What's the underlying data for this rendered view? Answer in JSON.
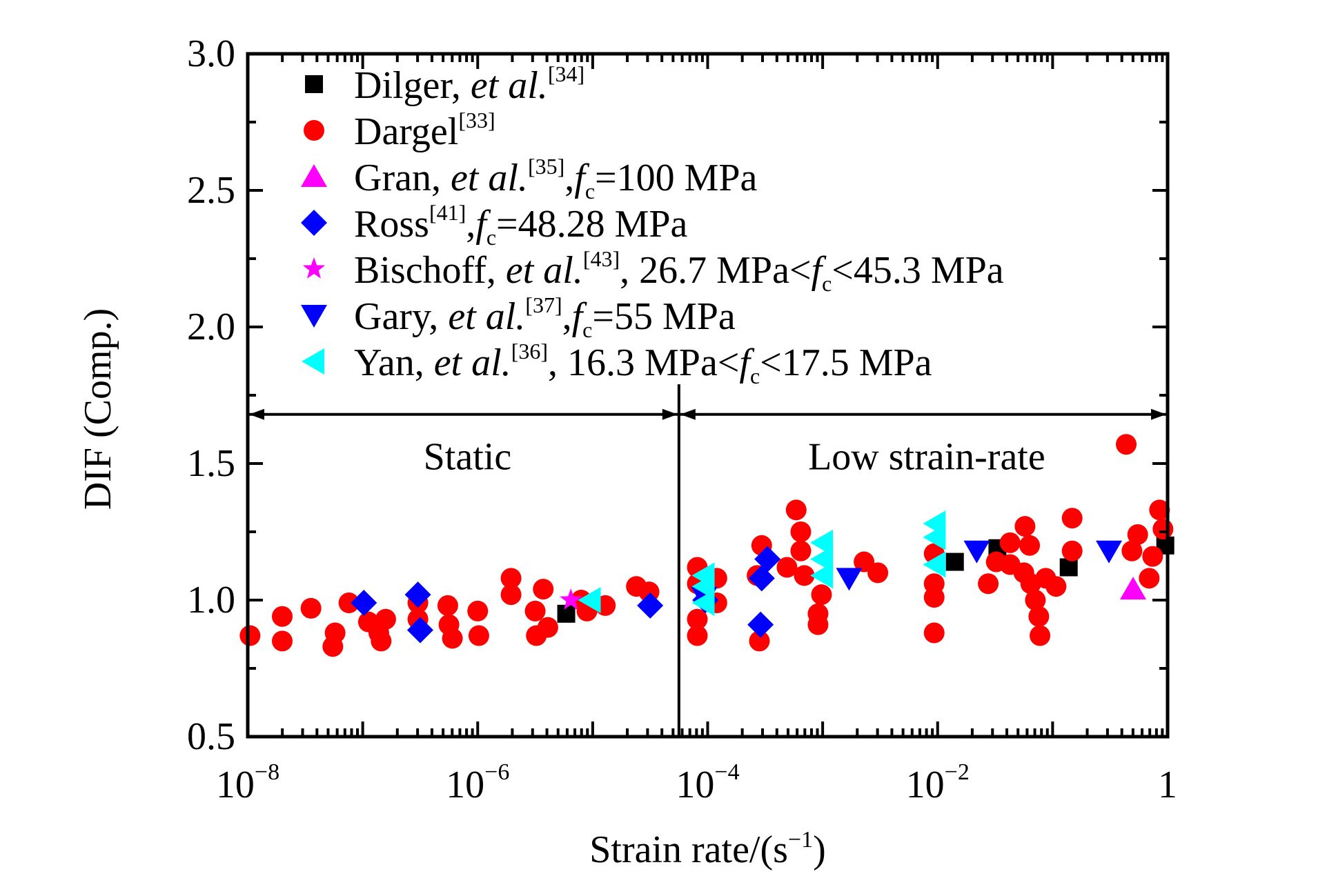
{
  "chart_data": {
    "type": "scatter",
    "title": "",
    "xlabel": "Strain rate/(s",
    "xlabel_sup": "−1",
    "xlabel_end": ")",
    "ylabel": "DIF (Comp.)",
    "xscale": "log",
    "xlim_log10": [
      -8,
      0
    ],
    "ylim": [
      0.5,
      3.0
    ],
    "grid": false,
    "legend_position": "top-left",
    "x_ticks": [
      {
        "base": "10",
        "exp": "−8",
        "log10": -8
      },
      {
        "base": "10",
        "exp": "−6",
        "log10": -6
      },
      {
        "base": "10",
        "exp": "−4",
        "log10": -4
      },
      {
        "base": "10",
        "exp": "−2",
        "log10": -2
      },
      {
        "base": "1",
        "exp": "",
        "log10": 0
      }
    ],
    "y_ticks": [
      "0.5",
      "1.0",
      "1.5",
      "2.0",
      "2.5",
      "3.0"
    ],
    "y_tick_values": [
      0.5,
      1.0,
      1.5,
      2.0,
      2.5,
      3.0
    ],
    "annotations": {
      "divider_log10": -4.25,
      "divider_top_dif": 1.79,
      "arrow_dif": 1.68,
      "static_label": "Static",
      "low_label": "Low strain-rate"
    },
    "series": [
      {
        "name": "Dilger, et al.[34]",
        "legend": {
          "pre": "Dilger, ",
          "ital": "et al.",
          "sup": "[34]",
          "post": ""
        },
        "marker": "square",
        "color": "#000000",
        "points": [
          [
            -5.23,
            0.95
          ],
          [
            -1.85,
            1.14
          ],
          [
            -1.48,
            1.19
          ],
          [
            -0.86,
            1.12
          ],
          [
            -0.02,
            1.2
          ]
        ]
      },
      {
        "name": "Dargel[33]",
        "legend": {
          "pre": "Dargel",
          "ital": "",
          "sup": "[33]",
          "post": ""
        },
        "marker": "circle",
        "color": "#ff0000",
        "points": [
          [
            -7.98,
            0.87
          ],
          [
            -7.7,
            0.94
          ],
          [
            -7.7,
            0.85
          ],
          [
            -7.45,
            0.97
          ],
          [
            -7.24,
            0.88
          ],
          [
            -7.26,
            0.83
          ],
          [
            -7.12,
            0.99
          ],
          [
            -6.95,
            0.92
          ],
          [
            -6.86,
            0.88
          ],
          [
            -6.84,
            0.85
          ],
          [
            -6.8,
            0.93
          ],
          [
            -6.52,
            0.99
          ],
          [
            -6.52,
            0.93
          ],
          [
            -6.26,
            0.98
          ],
          [
            -6.25,
            0.91
          ],
          [
            -6.22,
            0.86
          ],
          [
            -6.0,
            0.96
          ],
          [
            -5.99,
            0.87
          ],
          [
            -5.71,
            1.08
          ],
          [
            -5.71,
            1.02
          ],
          [
            -5.43,
            1.04
          ],
          [
            -5.5,
            0.96
          ],
          [
            -5.49,
            0.87
          ],
          [
            -5.39,
            0.9
          ],
          [
            -5.1,
            1.0
          ],
          [
            -5.05,
            0.96
          ],
          [
            -4.89,
            0.98
          ],
          [
            -4.62,
            1.05
          ],
          [
            -4.51,
            1.03
          ],
          [
            -4.09,
            1.12
          ],
          [
            -4.09,
            1.06
          ],
          [
            -4.09,
            0.93
          ],
          [
            -4.09,
            0.87
          ],
          [
            -3.92,
            1.08
          ],
          [
            -3.92,
            0.99
          ],
          [
            -3.53,
            1.2
          ],
          [
            -3.57,
            1.09
          ],
          [
            -3.55,
            0.85
          ],
          [
            -3.23,
            1.33
          ],
          [
            -3.19,
            1.25
          ],
          [
            -3.19,
            1.18
          ],
          [
            -3.31,
            1.12
          ],
          [
            -3.16,
            1.09
          ],
          [
            -3.01,
            1.02
          ],
          [
            -3.04,
            0.95
          ],
          [
            -3.04,
            0.91
          ],
          [
            -2.64,
            1.14
          ],
          [
            -2.52,
            1.1
          ],
          [
            -2.03,
            1.17
          ],
          [
            -2.03,
            1.06
          ],
          [
            -2.03,
            1.01
          ],
          [
            -2.03,
            0.88
          ],
          [
            -1.56,
            1.06
          ],
          [
            -1.49,
            1.14
          ],
          [
            -1.37,
            1.21
          ],
          [
            -1.24,
            1.27
          ],
          [
            -1.2,
            1.2
          ],
          [
            -1.37,
            1.13
          ],
          [
            -1.25,
            1.1
          ],
          [
            -1.19,
            1.06
          ],
          [
            -1.06,
            1.08
          ],
          [
            -0.97,
            1.05
          ],
          [
            -1.15,
            1.0
          ],
          [
            -1.12,
            0.94
          ],
          [
            -1.11,
            0.87
          ],
          [
            -0.83,
            1.3
          ],
          [
            -0.83,
            1.18
          ],
          [
            -0.36,
            1.57
          ],
          [
            -0.31,
            1.18
          ],
          [
            -0.26,
            1.24
          ],
          [
            -0.07,
            1.33
          ],
          [
            -0.04,
            1.26
          ],
          [
            -0.13,
            1.16
          ],
          [
            -0.16,
            1.08
          ]
        ]
      },
      {
        "name": "Gran, et al.[35], fc=100 MPa",
        "legend": {
          "pre": "Gran, ",
          "ital": "et al.",
          "sup": "[35]",
          "post": ",",
          "f": "f",
          "sub": "c",
          "tail": "=100 MPa"
        },
        "marker": "triangle-up",
        "color": "#ff00ff",
        "points": [
          [
            -0.3,
            1.04
          ]
        ]
      },
      {
        "name": "Ross[41], fc=48.28 MPa",
        "legend": {
          "pre": "Ross",
          "ital": "",
          "sup": "[41]",
          "post": ",",
          "f": "f",
          "sub": "c",
          "tail": "=48.28 MPa"
        },
        "marker": "diamond",
        "color": "#0000ff",
        "points": [
          [
            -6.99,
            0.99
          ],
          [
            -6.52,
            1.02
          ],
          [
            -6.5,
            0.89
          ],
          [
            -4.5,
            0.98
          ],
          [
            -4.02,
            1.0
          ],
          [
            -3.48,
            1.15
          ],
          [
            -3.53,
            1.08
          ],
          [
            -3.54,
            0.91
          ]
        ]
      },
      {
        "name": "Bischoff, et al.[43], 26.7 MPa<fc<45.3 MPa",
        "legend": {
          "pre": "Bischoff, ",
          "ital": "et al.",
          "sup": "[43]",
          "post": ", 26.7 MPa<",
          "f": "f",
          "sub": "c",
          "tail": "<45.3 MPa"
        },
        "marker": "star",
        "color": "#ff00ff",
        "points": [
          [
            -5.19,
            1.0
          ]
        ]
      },
      {
        "name": "Gary, et al.[37], fc=55 MPa",
        "legend": {
          "pre": "Gary, ",
          "ital": "et al.",
          "sup": "[37]",
          "post": ",",
          "f": "f",
          "sub": "c",
          "tail": "=55 MPa"
        },
        "marker": "triangle-down",
        "color": "#0000ff",
        "points": [
          [
            -4.03,
            1.01
          ],
          [
            -2.77,
            1.08
          ],
          [
            -1.66,
            1.18
          ],
          [
            -0.51,
            1.18
          ]
        ]
      },
      {
        "name": "Yan, et al.[36], 16.3 MPa<fc<17.5 MPa",
        "legend": {
          "pre": "Yan, ",
          "ital": "et al.",
          "sup": "[36]",
          "post": ", 16.3 MPa<",
          "f": "f",
          "sub": "c",
          "tail": "<17.5 MPa"
        },
        "marker": "triangle-left",
        "color": "#00ffff",
        "points": [
          [
            -5.02,
            1.0
          ],
          [
            -4.03,
            1.09
          ],
          [
            -4.03,
            1.05
          ],
          [
            -4.03,
            0.99
          ],
          [
            -3.0,
            1.21
          ],
          [
            -3.0,
            1.15
          ],
          [
            -3.0,
            1.09
          ],
          [
            -2.02,
            1.28
          ],
          [
            -2.02,
            1.23
          ],
          [
            -2.02,
            1.13
          ]
        ]
      }
    ]
  }
}
